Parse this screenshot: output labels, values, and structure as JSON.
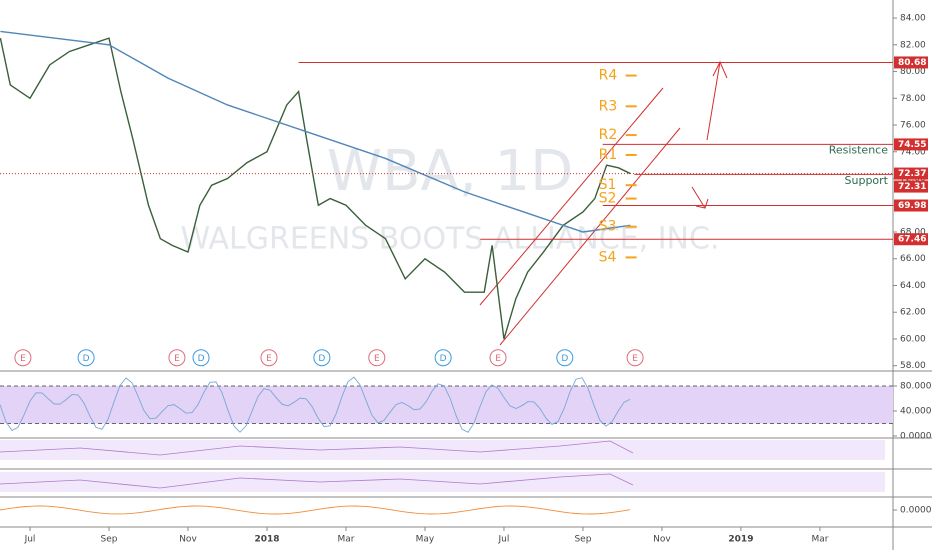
{
  "chart_data": [
    {
      "type": "line",
      "watermark": "WBA, 1D",
      "watermark_subtitle": "WALGREENS BOOTS ALLIANCE, INC.",
      "xlim": [
        -0.76,
        21.85
      ],
      "xticks": [
        {
          "value": 0,
          "label": "Jul"
        },
        {
          "value": 2,
          "label": "Sep"
        },
        {
          "value": 4,
          "label": "Nov"
        },
        {
          "value": 6,
          "label": "2018"
        },
        {
          "value": 8,
          "label": "Mar"
        },
        {
          "value": 10,
          "label": "May"
        },
        {
          "value": 12,
          "label": "Jul"
        },
        {
          "value": 14,
          "label": "Sep"
        },
        {
          "value": 16,
          "label": "Nov"
        },
        {
          "value": 18,
          "label": "2019"
        },
        {
          "value": 20,
          "label": "Mar"
        }
      ],
      "ylim": [
        57.68,
        85.35
      ],
      "yticks": [
        {
          "value": 58,
          "label": "58.00"
        },
        {
          "value": 60,
          "label": "60.00"
        },
        {
          "value": 62,
          "label": "62.00"
        },
        {
          "value": 64,
          "label": "64.00"
        },
        {
          "value": 66,
          "label": "66.00"
        },
        {
          "value": 68,
          "label": "68.00"
        },
        {
          "value": 70,
          "label": "70.00"
        },
        {
          "value": 72,
          "label": "72.00"
        },
        {
          "value": 74,
          "label": "74.00"
        },
        {
          "value": 76,
          "label": "76.00"
        },
        {
          "value": 78,
          "label": "78.00"
        },
        {
          "value": 80,
          "label": "80.00"
        },
        {
          "value": 82,
          "label": "82.00"
        },
        {
          "value": 84,
          "label": "84.00"
        }
      ],
      "series": [
        {
          "color": "#3a5f3a",
          "x": [
            -0.75,
            -0.5,
            0,
            0.5,
            1,
            1.5,
            2,
            2.3,
            2.6,
            3,
            3.3,
            3.6,
            4,
            4.3,
            4.6,
            5,
            5.5,
            6,
            6.5,
            6.8,
            7,
            7.3,
            7.6,
            8,
            8.5,
            9,
            9.5,
            10,
            10.5,
            11,
            11.5,
            11.7,
            12,
            12.3,
            12.6,
            13,
            13.5,
            14,
            14.3,
            14.6,
            14.9,
            15.2
          ],
          "values": [
            82.5,
            79,
            78,
            80.5,
            81.5,
            82,
            82.5,
            78.5,
            75,
            70,
            67.5,
            67,
            66.5,
            70,
            71.5,
            72,
            73.2,
            74,
            77.5,
            78.5,
            75,
            70,
            70.5,
            70,
            68.5,
            67.5,
            64.5,
            66,
            65,
            63.5,
            63.5,
            67,
            60,
            63,
            65,
            66.5,
            68.5,
            69.5,
            70.5,
            73,
            72.8,
            72.37
          ]
        },
        {
          "color": "#4f86b8",
          "x": [
            -0.75,
            2,
            3.5,
            5,
            7,
            9,
            11,
            12.5,
            14,
            15.2
          ],
          "values": [
            83,
            82,
            79.5,
            77.5,
            75.5,
            73.5,
            71,
            69.5,
            68,
            68.5
          ]
        }
      ],
      "levels": [
        {
          "value": 80.68,
          "x": 6.8,
          "style": "solid"
        },
        {
          "value": 74.55,
          "x": 14.5,
          "style": "solid"
        },
        {
          "value": 72.37,
          "x": -0.76,
          "style": "dotted"
        },
        {
          "value": 72.31,
          "x": 15.3,
          "style": "solid"
        },
        {
          "value": 69.98,
          "x": 14.5,
          "style": "solid"
        },
        {
          "value": 67.46,
          "x": 11.4,
          "style": "solid"
        }
      ],
      "level_color": "#d32f2f",
      "annotations": [
        {
          "text": "Resistence",
          "y": 74.1
        },
        {
          "text": "Support",
          "y": 71.8
        }
      ],
      "pivots": [
        {
          "label": "R4",
          "value": 79.7
        },
        {
          "label": "R3",
          "value": 77.4
        },
        {
          "label": "R2",
          "value": 75.25
        },
        {
          "label": "R1",
          "value": 73.76
        },
        {
          "label": "S1",
          "value": 71.5
        },
        {
          "label": "S2",
          "value": 70.5
        },
        {
          "label": "S3",
          "value": 68.4
        },
        {
          "label": "S4",
          "value": 66.1
        }
      ],
      "pivot_x": 14.6,
      "pivot_color": "#f5a31a",
      "events": [
        {
          "label": "E",
          "x": -0.18,
          "color": "#e06c7a"
        },
        {
          "label": "D",
          "x": 1.42,
          "color": "#3d9be0"
        },
        {
          "label": "E",
          "x": 3.72,
          "color": "#e06c7a"
        },
        {
          "label": "D",
          "x": 4.33,
          "color": "#3d9be0"
        },
        {
          "label": "E",
          "x": 6.05,
          "color": "#e06c7a"
        },
        {
          "label": "D",
          "x": 7.39,
          "color": "#3d9be0"
        },
        {
          "label": "E",
          "x": 8.78,
          "color": "#e06c7a"
        },
        {
          "label": "D",
          "x": 10.46,
          "color": "#3d9be0"
        },
        {
          "label": "E",
          "x": 11.85,
          "color": "#e06c7a"
        },
        {
          "label": "D",
          "x": 13.54,
          "color": "#3d9be0"
        },
        {
          "label": "E",
          "x": 15.32,
          "color": "#e06c7a"
        }
      ],
      "event_y": 58.6
    },
    {
      "type": "oscillator",
      "ylim": [
        -1.6,
        102.4
      ],
      "yticks": [
        {
          "value": 0,
          "label": "0.0000"
        },
        {
          "value": 40,
          "label": "40.0000"
        },
        {
          "value": 80,
          "label": "80.0000"
        }
      ],
      "band": [
        20,
        80
      ],
      "band_color": "#e3d3f7"
    },
    {
      "type": "oscillator",
      "ylim": [
        -1,
        0.75
      ],
      "yticks": [
        {
          "value": 0,
          "label": "0.0000"
        }
      ]
    }
  ]
}
